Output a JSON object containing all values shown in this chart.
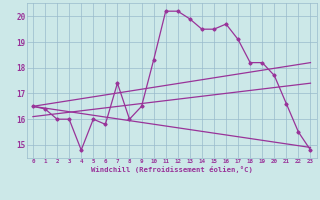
{
  "xlabel": "Windchill (Refroidissement éolien,°C)",
  "background_color": "#cce8e8",
  "grid_color": "#99bbcc",
  "line_color": "#993399",
  "xlim": [
    -0.5,
    23.5
  ],
  "ylim": [
    14.5,
    20.5
  ],
  "yticks": [
    15,
    16,
    17,
    18,
    19,
    20
  ],
  "xticks": [
    0,
    1,
    2,
    3,
    4,
    5,
    6,
    7,
    8,
    9,
    10,
    11,
    12,
    13,
    14,
    15,
    16,
    17,
    18,
    19,
    20,
    21,
    22,
    23
  ],
  "line1_x": [
    0,
    1,
    2,
    3,
    4,
    5,
    6,
    7,
    8,
    9,
    10,
    11,
    12,
    13,
    14,
    15,
    16,
    17,
    18,
    19,
    20,
    21,
    22,
    23
  ],
  "line1_y": [
    16.5,
    16.4,
    16.0,
    16.0,
    14.8,
    16.0,
    15.8,
    17.4,
    16.0,
    16.5,
    18.3,
    20.2,
    20.2,
    19.9,
    19.5,
    19.5,
    19.7,
    19.1,
    18.2,
    18.2,
    17.7,
    16.6,
    15.5,
    14.8
  ],
  "line2_x": [
    0,
    23
  ],
  "line2_y": [
    16.5,
    18.2
  ],
  "line3_x": [
    0,
    23
  ],
  "line3_y": [
    16.1,
    17.4
  ],
  "line4_x": [
    0,
    23
  ],
  "line4_y": [
    16.5,
    14.9
  ]
}
